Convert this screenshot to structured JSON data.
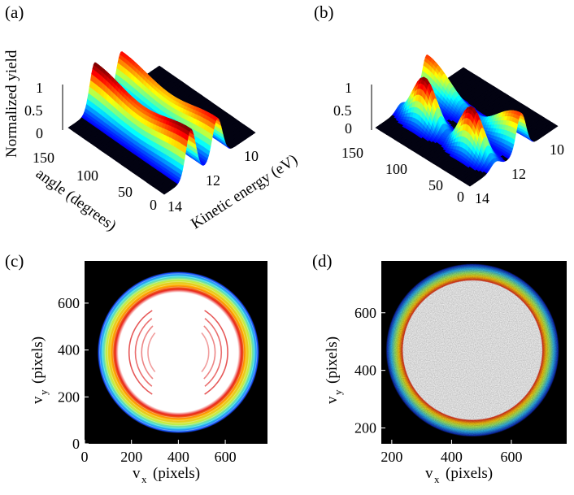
{
  "colormap": "jet",
  "chart_data": [
    {
      "panel": "(a)",
      "type": "surface",
      "zlabel": "Normalized yield",
      "ylabel": "angle (degrees)",
      "xlabel": "Kinetic energy (eV)",
      "z_ticks": [
        "0",
        "0.5",
        "1"
      ],
      "angle_ticks": [
        "0",
        "50",
        "100",
        "150"
      ],
      "energy_ticks": [
        "14",
        "12",
        "10"
      ],
      "zlim": [
        0,
        1
      ],
      "angle_range": [
        0,
        180
      ],
      "energy_range": [
        9,
        14.5
      ],
      "ridges": [
        {
          "energy_eV": 10.6,
          "angle_peaks_deg": [
            0,
            90,
            180
          ],
          "peak": 1.0
        },
        {
          "energy_eV": 12.2,
          "angle_peaks_deg": [
            0,
            90,
            180
          ],
          "peak": 0.85
        }
      ]
    },
    {
      "panel": "(b)",
      "type": "surface",
      "z_ticks": [
        "0",
        "0.5",
        "1"
      ],
      "angle_ticks": [
        "0",
        "50",
        "100",
        "150"
      ],
      "energy_ticks": [
        "14",
        "12",
        "10"
      ],
      "zlim": [
        0,
        1
      ],
      "angle_range": [
        0,
        180
      ],
      "energy_range": [
        9,
        14.5
      ],
      "ridges": [
        {
          "energy_eV": 10.6,
          "angle_peaks_deg": [
            45,
            135
          ],
          "peak": 1.0
        },
        {
          "energy_eV": 12.2,
          "angle_peaks_deg": [
            0,
            90,
            180
          ],
          "peak": 0.8
        }
      ]
    },
    {
      "panel": "(c)",
      "type": "heatmap",
      "xlabel": "v",
      "xlabel_sub": "x",
      "xlabel_unit": "(pixels)",
      "ylabel": "v",
      "ylabel_sub": "y",
      "ylabel_unit": "(pixels)",
      "x_ticks": [
        "0",
        "200",
        "400",
        "600"
      ],
      "y_ticks": [
        "0",
        "200",
        "400",
        "600"
      ],
      "xlim": [
        0,
        780
      ],
      "ylim": [
        0,
        780
      ],
      "ring_center": [
        400,
        390
      ],
      "ring_radius_inner": 270,
      "ring_radius_outer": 345,
      "inner_arcs": true
    },
    {
      "panel": "(d)",
      "type": "heatmap",
      "xlabel": "v",
      "xlabel_sub": "x",
      "xlabel_unit": "(pixels)",
      "ylabel": "v",
      "ylabel_sub": "y",
      "ylabel_unit": "(pixels)",
      "x_ticks": [
        "200",
        "400",
        "600"
      ],
      "y_ticks": [
        "200",
        "400",
        "600"
      ],
      "xlim": [
        165,
        785
      ],
      "ylim": [
        145,
        780
      ],
      "ring_center": [
        470,
        470
      ],
      "ring_radius_inner": 235,
      "ring_radius_outer": 290,
      "inner_arcs": false
    }
  ]
}
